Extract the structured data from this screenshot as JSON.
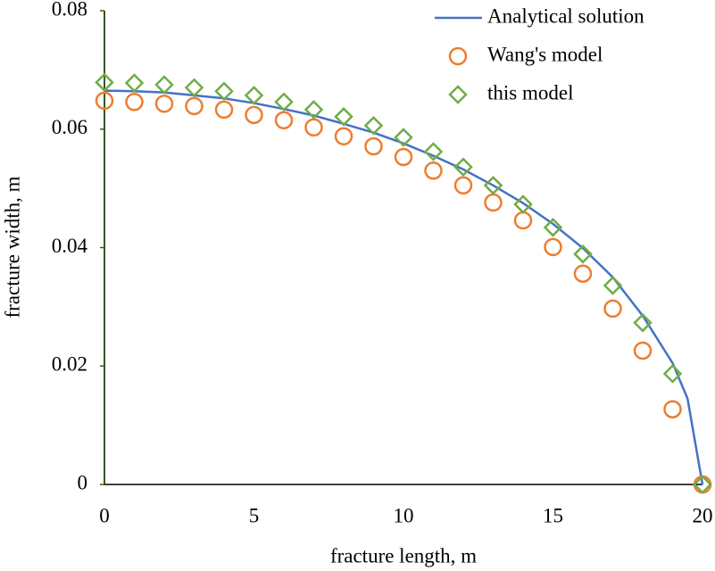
{
  "chart_data": {
    "type": "line_scatter",
    "xlabel": "fracture length, m",
    "ylabel": "fracture width, m",
    "xlim": [
      0,
      20
    ],
    "xticks": [
      0,
      5,
      10,
      15,
      20
    ],
    "ylim": [
      0,
      0.08
    ],
    "yticks": [
      0,
      0.02,
      0.04,
      0.06,
      0.08
    ],
    "grid": false,
    "legend": "upper right",
    "series": [
      {
        "name": "Analytical solution",
        "kind": "line",
        "color": "#4472c4",
        "x": [
          0,
          1,
          2,
          3,
          4,
          5,
          6,
          7,
          8,
          9,
          10,
          11,
          12,
          13,
          14,
          15,
          16,
          17,
          18,
          19,
          19.5,
          20
        ],
        "values": [
          0.0665,
          0.0664,
          0.0662,
          0.0657,
          0.0652,
          0.0644,
          0.0634,
          0.0623,
          0.0609,
          0.0594,
          0.0576,
          0.0555,
          0.0532,
          0.0505,
          0.0475,
          0.044,
          0.0399,
          0.035,
          0.0285,
          0.0205,
          0.0145,
          0
        ]
      },
      {
        "name": "Wang's model",
        "kind": "circle",
        "color": "#ed7d31",
        "x": [
          0,
          1,
          2,
          3,
          4,
          5,
          6,
          7,
          8,
          9,
          10,
          11,
          12,
          13,
          14,
          15,
          16,
          17,
          18,
          19,
          20
        ],
        "values": [
          0.0648,
          0.0646,
          0.0643,
          0.0639,
          0.0633,
          0.0624,
          0.0615,
          0.0603,
          0.0588,
          0.0571,
          0.0553,
          0.053,
          0.0505,
          0.0476,
          0.0446,
          0.0401,
          0.0356,
          0.0297,
          0.0226,
          0.0127,
          0
        ]
      },
      {
        "name": "this model",
        "kind": "diamond",
        "color": "#70ad47",
        "x": [
          0,
          1,
          2,
          3,
          4,
          5,
          6,
          7,
          8,
          9,
          10,
          11,
          12,
          13,
          14,
          15,
          16,
          17,
          18,
          19,
          20
        ],
        "values": [
          0.0679,
          0.0678,
          0.0675,
          0.067,
          0.0664,
          0.0657,
          0.0646,
          0.0633,
          0.0621,
          0.0606,
          0.0586,
          0.0562,
          0.0536,
          0.0505,
          0.0473,
          0.0434,
          0.0389,
          0.0336,
          0.0273,
          0.0187,
          0
        ]
      }
    ]
  }
}
